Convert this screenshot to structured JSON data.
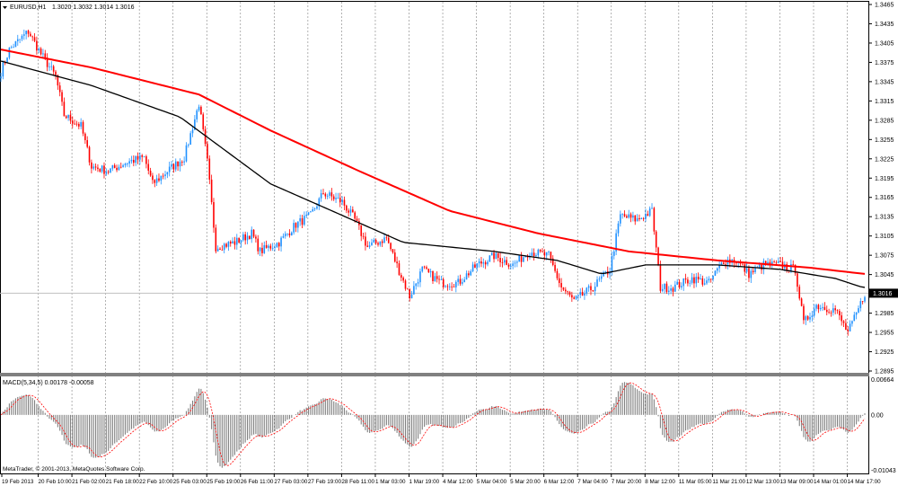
{
  "header": {
    "symbol": "EURUSD,H1",
    "ohlc": "1.3020 1.3032 1.3014 1.3016"
  },
  "macd_label": "MACD(5,34,5) 0.00178 -0.00058",
  "copyright": "MetaTrader, © 2001-2013, MetaQuotes Software Corp.",
  "colors": {
    "bull": "#1e90ff",
    "bear": "#ff0000",
    "ma_slow": "#ff0000",
    "ma_fast": "#000000",
    "macd_hist": "#808080",
    "macd_signal": "#ff0000",
    "grid": "#808080"
  },
  "chart_data": [
    {
      "type": "candlestick",
      "timeframe": "H1",
      "price_axis": {
        "ticks": [
          "1.3465",
          "1.3435",
          "1.3405",
          "1.3375",
          "1.3345",
          "1.3315",
          "1.3285",
          "1.3255",
          "1.3225",
          "1.3195",
          "1.3165",
          "1.3135",
          "1.3105",
          "1.3075",
          "1.3045",
          "1.2985",
          "1.2955",
          "1.2925",
          "1.2895"
        ],
        "range": [
          1.2895,
          1.3465
        ]
      },
      "current_price": "1.3016",
      "time_axis": [
        "19 Feb 2013",
        "20 Feb 10:00",
        "21 Feb 02:00",
        "21 Feb 18:00",
        "22 Feb 10:00",
        "25 Feb 03:00",
        "25 Feb 19:00",
        "26 Feb 11:00",
        "27 Feb 03:00",
        "27 Feb 19:00",
        "28 Feb 11:00",
        "1 Mar 03:00",
        "1 Mar 19:00",
        "4 Mar 12:00",
        "5 Mar 04:00",
        "5 Mar 20:00",
        "6 Mar 12:00",
        "7 Mar 04:00",
        "7 Mar 20:00",
        "8 Mar 12:00",
        "11 Mar 05:00",
        "11 Mar 21:00",
        "12 Mar 13:00",
        "13 Mar 09:00",
        "14 Mar 01:00",
        "14 Mar 17:00"
      ],
      "close_path_bar_price": [
        [
          0,
          1.336
        ],
        [
          4,
          1.3395
        ],
        [
          13,
          1.3423
        ],
        [
          19,
          1.3388
        ],
        [
          26,
          1.3353
        ],
        [
          30,
          1.3293
        ],
        [
          38,
          1.3276
        ],
        [
          43,
          1.3213
        ],
        [
          51,
          1.3206
        ],
        [
          60,
          1.322
        ],
        [
          68,
          1.3227
        ],
        [
          72,
          1.3186
        ],
        [
          79,
          1.3206
        ],
        [
          87,
          1.3227
        ],
        [
          94,
          1.3311
        ],
        [
          98,
          1.322
        ],
        [
          102,
          1.3088
        ],
        [
          111,
          1.3095
        ],
        [
          119,
          1.3109
        ],
        [
          123,
          1.3081
        ],
        [
          132,
          1.3095
        ],
        [
          140,
          1.3123
        ],
        [
          147,
          1.3137
        ],
        [
          153,
          1.3172
        ],
        [
          162,
          1.3158
        ],
        [
          168,
          1.313
        ],
        [
          174,
          1.3088
        ],
        [
          183,
          1.3102
        ],
        [
          187,
          1.3067
        ],
        [
          194,
          1.3011
        ],
        [
          200,
          1.3053
        ],
        [
          209,
          1.3032
        ],
        [
          217,
          1.3032
        ],
        [
          226,
          1.306
        ],
        [
          234,
          1.3074
        ],
        [
          243,
          1.306
        ],
        [
          251,
          1.3081
        ],
        [
          260,
          1.3074
        ],
        [
          266,
          1.3025
        ],
        [
          272,
          1.3004
        ],
        [
          281,
          1.3025
        ],
        [
          289,
          1.3053
        ],
        [
          294,
          1.3137
        ],
        [
          302,
          1.313
        ],
        [
          309,
          1.3144
        ],
        [
          313,
          1.3025
        ],
        [
          319,
          1.3025
        ],
        [
          328,
          1.3039
        ],
        [
          336,
          1.3032
        ],
        [
          343,
          1.3067
        ],
        [
          349,
          1.3067
        ],
        [
          355,
          1.3046
        ],
        [
          362,
          1.306
        ],
        [
          370,
          1.306
        ],
        [
          377,
          1.3053
        ],
        [
          381,
          1.2969
        ],
        [
          387,
          1.2997
        ],
        [
          396,
          1.299
        ],
        [
          402,
          1.2955
        ],
        [
          406,
          1.2983
        ],
        [
          410,
          1.3016
        ]
      ],
      "ma_slow_bar_price": [
        [
          0,
          1.3395
        ],
        [
          43,
          1.3367
        ],
        [
          94,
          1.3325
        ],
        [
          128,
          1.3269
        ],
        [
          170,
          1.3206
        ],
        [
          213,
          1.3144
        ],
        [
          255,
          1.3109
        ],
        [
          298,
          1.3081
        ],
        [
          340,
          1.3067
        ],
        [
          383,
          1.3056
        ],
        [
          410,
          1.3046
        ]
      ],
      "ma_fast_bar_price": [
        [
          0,
          1.3377
        ],
        [
          43,
          1.3339
        ],
        [
          85,
          1.329
        ],
        [
          128,
          1.3186
        ],
        [
          162,
          1.3137
        ],
        [
          191,
          1.3095
        ],
        [
          234,
          1.3081
        ],
        [
          264,
          1.3067
        ],
        [
          285,
          1.3046
        ],
        [
          306,
          1.306
        ],
        [
          340,
          1.306
        ],
        [
          370,
          1.3053
        ],
        [
          396,
          1.3039
        ],
        [
          409,
          1.3025
        ]
      ]
    },
    {
      "type": "bar",
      "indicator": "MACD(5,34,5)",
      "value_axis": {
        "ticks": [
          "0.00664",
          "0.00",
          "-0.01043"
        ],
        "range": [
          -0.01043,
          0.00664
        ]
      }
    }
  ]
}
